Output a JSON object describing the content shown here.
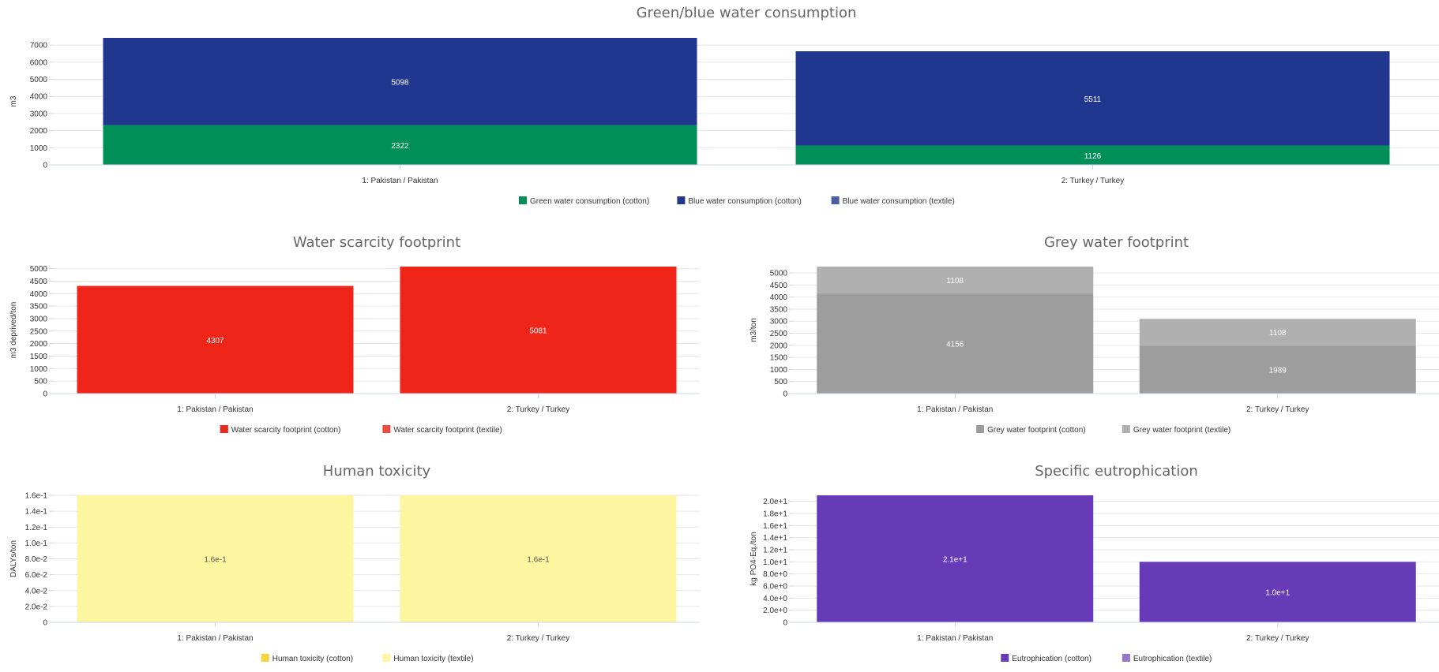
{
  "chart_data": [
    {
      "id": "green-blue",
      "type": "bar",
      "stacked": true,
      "title": "Green/blue water consumption",
      "ylabel": "m3",
      "categories": [
        "1: Pakistan / Pakistan",
        "2: Turkey / Turkey"
      ],
      "series": [
        {
          "name": "Green water consumption (cotton)",
          "values": [
            2322,
            1126
          ],
          "labels": [
            "2322",
            "1126"
          ],
          "color": "#008f58"
        },
        {
          "name": "Blue water consumption (cotton)",
          "values": [
            5098,
            5511
          ],
          "labels": [
            "5098",
            "5511"
          ],
          "color": "#21368f"
        },
        {
          "name": "Blue water consumption (textile)",
          "values": [
            0,
            0
          ],
          "labels": [
            "",
            ""
          ],
          "color": "#4a5ea6"
        }
      ],
      "yticks": [
        "0",
        "1000",
        "2000",
        "3000",
        "4000",
        "5000",
        "6000",
        "7000"
      ],
      "tickvals": [
        0,
        1000,
        2000,
        3000,
        4000,
        5000,
        6000,
        7000
      ],
      "ylim": [
        0,
        7420
      ],
      "grid": true,
      "legend": "bottom"
    },
    {
      "id": "scarcity",
      "type": "bar",
      "stacked": true,
      "title": "Water scarcity footprint",
      "ylabel": "m3 deprived/ton",
      "categories": [
        "1: Pakistan / Pakistan",
        "2: Turkey / Turkey"
      ],
      "series": [
        {
          "name": "Water scarcity footprint (cotton)",
          "values": [
            4307,
            5081
          ],
          "labels": [
            "4307",
            "5081"
          ],
          "color": "#ee2518"
        },
        {
          "name": "Water scarcity footprint (textile)",
          "values": [
            0,
            0
          ],
          "labels": [
            "",
            ""
          ],
          "color": "#f04a3f"
        }
      ],
      "yticks": [
        "0",
        "500",
        "1000",
        "1500",
        "2000",
        "2500",
        "3000",
        "3500",
        "4000",
        "4500",
        "5000"
      ],
      "tickvals": [
        0,
        500,
        1000,
        1500,
        2000,
        2500,
        3000,
        3500,
        4000,
        4500,
        5000
      ],
      "ylim": [
        0,
        5081
      ],
      "grid": true,
      "legend": "bottom"
    },
    {
      "id": "grey",
      "type": "bar",
      "stacked": true,
      "title": "Grey water footprint",
      "ylabel": "m3/ton",
      "categories": [
        "1: Pakistan / Pakistan",
        "2: Turkey / Turkey"
      ],
      "series": [
        {
          "name": "Grey water footprint (cotton)",
          "values": [
            4156,
            1989
          ],
          "labels": [
            "4156",
            "1989"
          ],
          "color": "#9d9d9d"
        },
        {
          "name": "Grey water footprint (textile)",
          "values": [
            1108,
            1108
          ],
          "labels": [
            "1108",
            "1108"
          ],
          "color": "#b0b0b0"
        }
      ],
      "yticks": [
        "0",
        "500",
        "1000",
        "1500",
        "2000",
        "2500",
        "3000",
        "3500",
        "4000",
        "4500",
        "5000"
      ],
      "tickvals": [
        0,
        500,
        1000,
        1500,
        2000,
        2500,
        3000,
        3500,
        4000,
        4500,
        5000
      ],
      "ylim": [
        0,
        5264
      ],
      "grid": true,
      "legend": "bottom"
    },
    {
      "id": "toxicity",
      "type": "bar",
      "stacked": true,
      "title": "Human toxicity",
      "ylabel": "DALYs/ton",
      "categories": [
        "1: Pakistan / Pakistan",
        "2: Turkey / Turkey"
      ],
      "series": [
        {
          "name": "Human toxicity (cotton)",
          "values": [
            0,
            0
          ],
          "labels": [
            "",
            ""
          ],
          "color": "#f9d53c"
        },
        {
          "name": "Human toxicity (textile)",
          "values": [
            0.16,
            0.16
          ],
          "labels": [
            "1.6e-1",
            "1.6e-1"
          ],
          "color": "#fdf5a0",
          "labelColor": "#555555"
        }
      ],
      "yticks": [
        "0",
        "2.0e-2",
        "4.0e-2",
        "6.0e-2",
        "8.0e-2",
        "1.0e-1",
        "1.2e-1",
        "1.4e-1",
        "1.6e-1"
      ],
      "tickvals": [
        0,
        0.02,
        0.04,
        0.06,
        0.08,
        0.1,
        0.12,
        0.14,
        0.16
      ],
      "ylim": [
        0,
        0.16
      ],
      "grid": true,
      "legend": "bottom"
    },
    {
      "id": "eutro",
      "type": "bar",
      "stacked": true,
      "title": "Specific eutrophication",
      "ylabel": "kg PO4-Eq./ton",
      "categories": [
        "1: Pakistan / Pakistan",
        "2: Turkey / Turkey"
      ],
      "series": [
        {
          "name": "Eutrophication (cotton)",
          "values": [
            21,
            10
          ],
          "labels": [
            "2.1e+1",
            "1.0e+1"
          ],
          "color": "#673ab7"
        },
        {
          "name": "Eutrophication (textile)",
          "values": [
            0,
            0
          ],
          "labels": [
            "",
            ""
          ],
          "color": "#9575cd"
        }
      ],
      "yticks": [
        "0",
        "2.0e+0",
        "4.0e+0",
        "6.0e+0",
        "8.0e+0",
        "1.0e+1",
        "1.2e+1",
        "1.4e+1",
        "1.6e+1",
        "1.8e+1",
        "2.0e+1"
      ],
      "tickvals": [
        0,
        2,
        4,
        6,
        8,
        10,
        12,
        14,
        16,
        18,
        20
      ],
      "ylim": [
        0,
        21
      ],
      "grid": true,
      "legend": "bottom"
    }
  ]
}
